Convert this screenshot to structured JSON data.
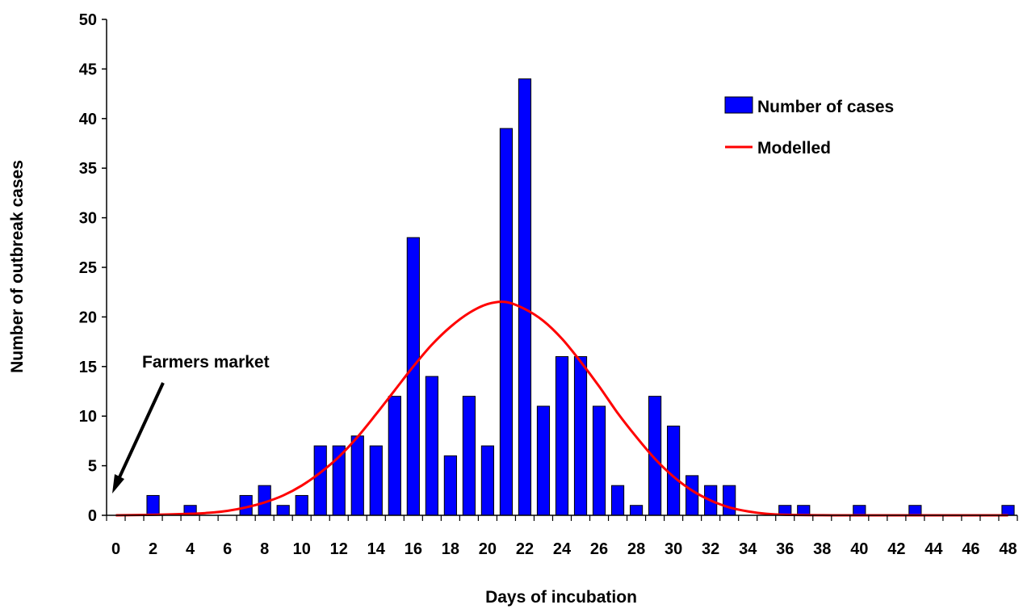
{
  "chart_data": {
    "type": "bar",
    "xlabel": "Days of incubation",
    "ylabel": "Number of outbreak cases",
    "ylim": [
      0,
      50
    ],
    "yticks": [
      0,
      5,
      10,
      15,
      20,
      25,
      30,
      35,
      40,
      45,
      50
    ],
    "xlim": [
      -0.5,
      48.5
    ],
    "xticks": [
      0,
      2,
      4,
      6,
      8,
      10,
      12,
      14,
      16,
      18,
      20,
      22,
      24,
      26,
      28,
      30,
      32,
      34,
      36,
      38,
      40,
      42,
      44,
      46,
      48
    ],
    "grid": false,
    "legend_position": "top-right",
    "bar_color": "#0000ff",
    "line_color": "#ff0000",
    "series": [
      {
        "name": "Number of cases",
        "type": "bar",
        "x": [
          2,
          4,
          7,
          8,
          9,
          10,
          11,
          12,
          13,
          14,
          15,
          16,
          17,
          18,
          19,
          20,
          21,
          22,
          23,
          24,
          25,
          26,
          27,
          28,
          29,
          30,
          31,
          32,
          33,
          36,
          37,
          40,
          43,
          48
        ],
        "values": [
          2,
          1,
          2,
          3,
          1,
          2,
          7,
          7,
          8,
          7,
          12,
          28,
          14,
          6,
          12,
          7,
          39,
          44,
          11,
          16,
          16,
          11,
          3,
          1,
          12,
          9,
          4,
          3,
          3,
          1,
          1,
          1,
          1,
          1
        ]
      },
      {
        "name": "Modelled",
        "type": "line",
        "x": [
          0,
          2,
          4,
          5,
          6,
          7,
          8,
          9,
          10,
          11,
          12,
          13,
          14,
          15,
          16,
          17,
          18,
          19,
          20,
          21,
          22,
          23,
          24,
          25,
          26,
          27,
          28,
          29,
          30,
          31,
          32,
          33,
          34,
          35,
          36,
          38,
          40,
          44,
          48
        ],
        "values": [
          0,
          0.05,
          0.15,
          0.25,
          0.45,
          0.8,
          1.3,
          2.0,
          3.0,
          4.3,
          5.9,
          7.9,
          10.2,
          12.6,
          15.0,
          17.2,
          19.0,
          20.4,
          21.3,
          21.5,
          20.8,
          19.6,
          17.8,
          15.5,
          13.0,
          10.3,
          7.9,
          5.7,
          3.9,
          2.5,
          1.5,
          0.8,
          0.4,
          0.15,
          0.05,
          0.01,
          0,
          0,
          0
        ]
      }
    ],
    "annotations": [
      {
        "text": "Farmers market",
        "arrow_to_x": 0
      }
    ]
  }
}
